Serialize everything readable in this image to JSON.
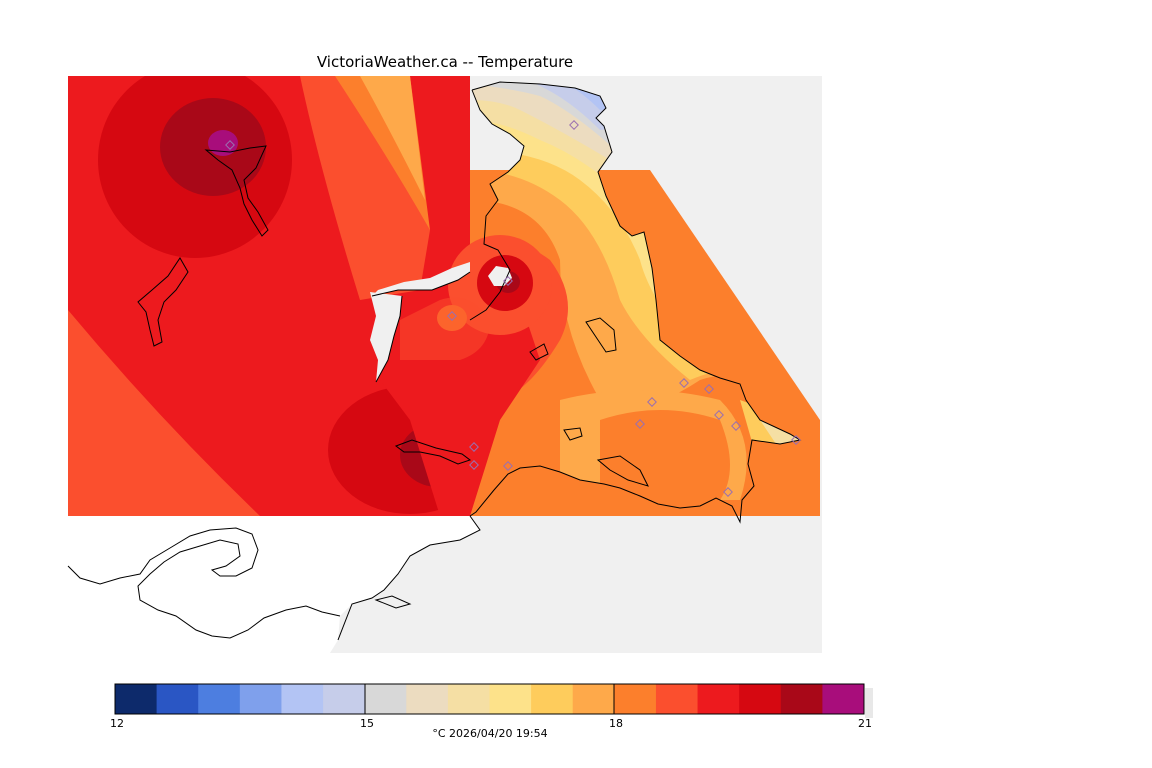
{
  "title": "VictoriaWeather.ca -- Temperature",
  "colorbar": {
    "ticks": [
      "12",
      "15",
      "18",
      "21"
    ],
    "caption": "°C  2026/04/20 19:54",
    "colors": [
      "#0d2a6b",
      "#2a56c4",
      "#4d7ee0",
      "#7fa0ec",
      "#b3c4f4",
      "#c6cdea",
      "#d8d8d8",
      "#ecdcc0",
      "#f5dfa4",
      "#fde28a",
      "#fecc5c",
      "#fea94a",
      "#fc7f2c",
      "#fb4f2e",
      "#ed1a1e",
      "#d60811",
      "#a90818",
      "#a80d7b"
    ]
  },
  "colors": {
    "background": "#f0f0f0",
    "land": "#ffffff",
    "coast": "#000000",
    "station": "#9a6fb0"
  }
}
